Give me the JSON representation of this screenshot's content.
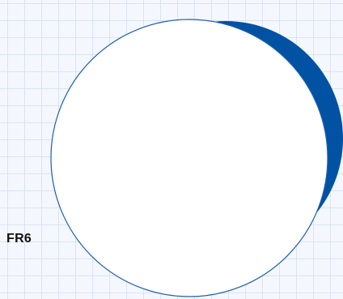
{
  "label": {
    "text": "FR6"
  },
  "colors": {
    "crescent": "#0152a3",
    "circle_stroke": "#1c5fb0",
    "circle_fill": "#ffffff",
    "grid_line": "#dbe3f3",
    "background": "#f4f7fd"
  },
  "shapes": {
    "crescent": "crescent-shape",
    "circle": "circle-shape"
  }
}
